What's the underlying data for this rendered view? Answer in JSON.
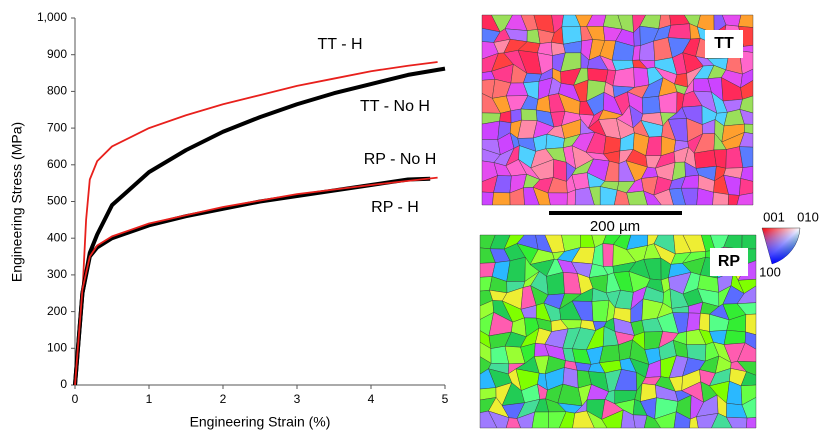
{
  "chart_data": {
    "type": "line",
    "xlabel": "Engineering Strain (%)",
    "ylabel": "Engineering Stress (MPa)",
    "xlim": [
      0,
      5
    ],
    "xticks": [
      0,
      1,
      2,
      3,
      4,
      5
    ],
    "ylim": [
      0,
      1000
    ],
    "yticks": [
      0,
      100,
      200,
      300,
      400,
      500,
      600,
      700,
      800,
      900,
      {
        "value": 1000,
        "label": "1,000"
      }
    ],
    "grid": false,
    "series": [
      {
        "name": "TT - H",
        "color": "#e8201c",
        "x": [
          0,
          0.1,
          0.15,
          0.2,
          0.3,
          0.5,
          1,
          1.5,
          2,
          2.5,
          3,
          3.5,
          4,
          4.5,
          4.9
        ],
        "values": [
          0,
          250,
          450,
          560,
          610,
          650,
          700,
          735,
          765,
          790,
          815,
          835,
          855,
          870,
          880
        ]
      },
      {
        "name": "TT - No H",
        "color": "#000000",
        "x": [
          0,
          0.1,
          0.2,
          0.3,
          0.5,
          1,
          1.5,
          2,
          2.5,
          3,
          3.5,
          4,
          4.5,
          5
        ],
        "values": [
          0,
          250,
          360,
          410,
          490,
          580,
          640,
          690,
          730,
          765,
          795,
          820,
          845,
          862
        ]
      },
      {
        "name": "RP - No H",
        "color": "#000000",
        "x": [
          0,
          0.1,
          0.2,
          0.3,
          0.5,
          1,
          1.5,
          2,
          2.5,
          3,
          3.5,
          4,
          4.5,
          4.8
        ],
        "values": [
          0,
          250,
          350,
          375,
          400,
          435,
          460,
          480,
          500,
          515,
          530,
          545,
          560,
          562
        ]
      },
      {
        "name": "RP - H",
        "color": "#e8201c",
        "x": [
          0,
          0.1,
          0.2,
          0.3,
          0.5,
          1,
          2,
          3,
          4,
          4.9
        ],
        "values": [
          0,
          260,
          350,
          380,
          405,
          440,
          485,
          520,
          545,
          565
        ]
      }
    ]
  },
  "images": {
    "top_label": "TT",
    "bottom_label": "RP",
    "scale_bar": "200 µm",
    "ipf_labels": [
      "001",
      "010",
      "100"
    ]
  }
}
